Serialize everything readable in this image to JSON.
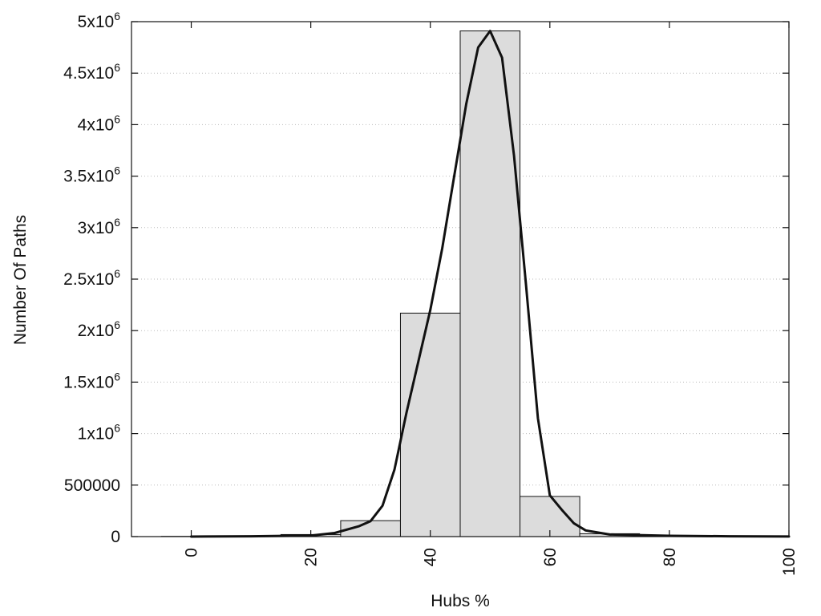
{
  "chart_data": {
    "type": "bar",
    "title": "",
    "xlabel": "Hubs %",
    "ylabel": "Number Of Paths",
    "xlim": [
      -10,
      100
    ],
    "ylim": [
      0,
      5000000
    ],
    "x_ticks": [
      0,
      20,
      40,
      60,
      80,
      100
    ],
    "x_tick_labels": [
      "0",
      "20",
      "40",
      "60",
      "80",
      "100"
    ],
    "y_ticks": [
      {
        "value": 0,
        "base": "0",
        "sup": ""
      },
      {
        "value": 500000,
        "base": "500000",
        "sup": ""
      },
      {
        "value": 1000000,
        "base": "1x10",
        "sup": "6"
      },
      {
        "value": 1500000,
        "base": "1.5x10",
        "sup": "6"
      },
      {
        "value": 2000000,
        "base": "2x10",
        "sup": "6"
      },
      {
        "value": 2500000,
        "base": "2.5x10",
        "sup": "6"
      },
      {
        "value": 3000000,
        "base": "3x10",
        "sup": "6"
      },
      {
        "value": 3500000,
        "base": "3.5x10",
        "sup": "6"
      },
      {
        "value": 4000000,
        "base": "4x10",
        "sup": "6"
      },
      {
        "value": 4500000,
        "base": "4.5x10",
        "sup": "6"
      },
      {
        "value": 5000000,
        "base": "5x10",
        "sup": "6"
      }
    ],
    "grid": {
      "horizontal": true,
      "style": "dotted"
    },
    "series": [
      {
        "kind": "histogram",
        "bin_width": 10,
        "bins": [
          {
            "center": 0,
            "value": 2000
          },
          {
            "center": 10,
            "value": 5000
          },
          {
            "center": 20,
            "value": 20000
          },
          {
            "center": 30,
            "value": 155000
          },
          {
            "center": 40,
            "value": 2170000
          },
          {
            "center": 50,
            "value": 4910000
          },
          {
            "center": 60,
            "value": 390000
          },
          {
            "center": 70,
            "value": 28000
          },
          {
            "center": 80,
            "value": 8000
          },
          {
            "center": 90,
            "value": 3000
          }
        ],
        "color": "#dcdcdc"
      },
      {
        "kind": "line",
        "color": "#111111",
        "points": [
          [
            0,
            0
          ],
          [
            10,
            3000
          ],
          [
            20,
            10000
          ],
          [
            24,
            35000
          ],
          [
            28,
            100000
          ],
          [
            30,
            150000
          ],
          [
            32,
            300000
          ],
          [
            34,
            650000
          ],
          [
            36,
            1200000
          ],
          [
            38,
            1700000
          ],
          [
            40,
            2200000
          ],
          [
            42,
            2800000
          ],
          [
            44,
            3500000
          ],
          [
            46,
            4200000
          ],
          [
            48,
            4750000
          ],
          [
            50,
            4910000
          ],
          [
            52,
            4650000
          ],
          [
            54,
            3700000
          ],
          [
            56,
            2450000
          ],
          [
            58,
            1150000
          ],
          [
            60,
            400000
          ],
          [
            62,
            260000
          ],
          [
            64,
            130000
          ],
          [
            66,
            60000
          ],
          [
            70,
            20000
          ],
          [
            80,
            8000
          ],
          [
            90,
            3000
          ],
          [
            100,
            1000
          ]
        ]
      }
    ]
  }
}
